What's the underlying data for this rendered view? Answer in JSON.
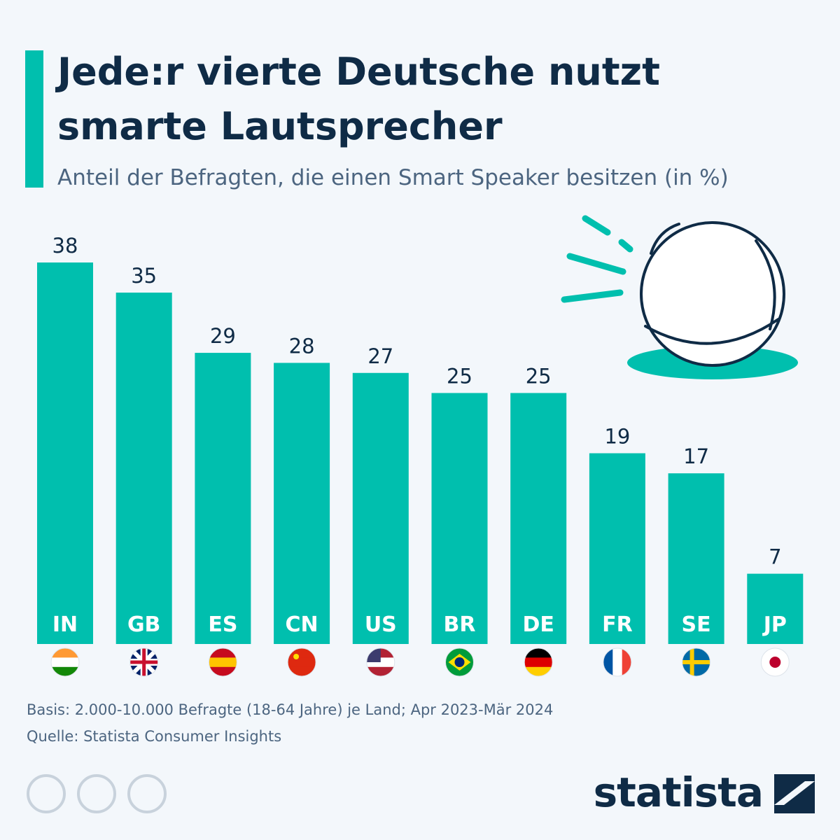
{
  "chart_data": {
    "type": "bar",
    "title": "Jede:r vierte Deutsche nutzt smarte Lautsprecher",
    "subtitle": "Anteil der Befragten, die einen Smart Speaker besitzen (in %)",
    "categories": [
      "IN",
      "GB",
      "ES",
      "CN",
      "US",
      "BR",
      "DE",
      "FR",
      "SE",
      "JP"
    ],
    "values": [
      38,
      35,
      29,
      28,
      27,
      25,
      25,
      19,
      17,
      7
    ],
    "color": "#00bfae",
    "note": "Basis: 2.000-10.000 Befragte (18-64 Jahre) je Land; Apr 2023-Mär 2024",
    "source": "Quelle: Statista Consumer Insights",
    "brand": "statista"
  }
}
